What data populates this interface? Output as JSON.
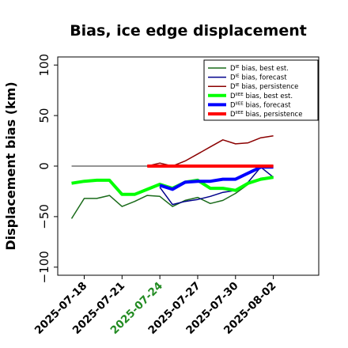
{
  "chart_data": {
    "type": "line",
    "title": "Bias, ice edge displacement",
    "ylabel": "Displacement bias (km)",
    "xlabel": "",
    "ylim": [
      -108,
      108
    ],
    "yticks": [
      -100,
      -50,
      0,
      50,
      100
    ],
    "ytick_labels": [
      "−100",
      "−50",
      "0",
      "50",
      "100"
    ],
    "xlim": [
      -1.1,
      19.6
    ],
    "xticks": [
      {
        "x": 1,
        "label": "2025-07-18",
        "color": "#000000"
      },
      {
        "x": 4,
        "label": "2025-07-21",
        "color": "#000000"
      },
      {
        "x": 7,
        "label": "2025-07-24",
        "color": "#228b22"
      },
      {
        "x": 10,
        "label": "2025-07-27",
        "color": "#000000"
      },
      {
        "x": 13,
        "label": "2025-07-30",
        "color": "#000000"
      },
      {
        "x": 16,
        "label": "2025-08-02",
        "color": "#000000"
      }
    ],
    "legend_position": "top-right",
    "series": [
      {
        "name": "D^IE bias, best est.",
        "sup": "IE",
        "rest": " bias, best est.",
        "color": "#1a6b1a",
        "width": 1.5,
        "x": [
          0,
          1,
          2,
          3,
          4,
          5,
          6,
          7,
          8,
          9,
          10,
          11,
          12,
          13,
          14,
          15,
          16
        ],
        "y": [
          -52,
          -32,
          -32,
          -29,
          -40,
          -35,
          -29,
          -30,
          -40,
          -34,
          -31,
          -37,
          -34,
          -27,
          -18,
          -12,
          -11
        ]
      },
      {
        "name": "D^IE bias, forecast",
        "sup": "IE",
        "rest": " bias, forecast",
        "color": "#00008b",
        "width": 1.5,
        "x": [
          7,
          8,
          9,
          10,
          11,
          12,
          13,
          14,
          15,
          16
        ],
        "y": [
          -21,
          -38,
          -35,
          -33,
          -30,
          -26,
          -24,
          -16,
          -1,
          -11
        ]
      },
      {
        "name": "D^IE bias, persistence",
        "sup": "IE",
        "rest": " bias, persistence",
        "color": "#8b0000",
        "width": 1.5,
        "x": [
          6,
          7,
          8,
          9,
          10,
          11,
          12,
          13,
          14,
          15,
          16
        ],
        "y": [
          0,
          3,
          0,
          5,
          12,
          19,
          26,
          22,
          23,
          28,
          30
        ]
      },
      {
        "name": "D^IIEE bias, best est.",
        "sup": "IIEE",
        "rest": " bias, best est.",
        "color": "#00ff00",
        "width": 4,
        "x": [
          0,
          1,
          2,
          3,
          4,
          5,
          6,
          7,
          8,
          9,
          10,
          11,
          12,
          13,
          14,
          15,
          16
        ],
        "y": [
          -17,
          -15,
          -14,
          -14,
          -28,
          -28,
          -23,
          -18,
          -22,
          -16,
          -14,
          -22,
          -22,
          -24,
          -17,
          -13,
          -11
        ]
      },
      {
        "name": "D^IIEE bias, forecast",
        "sup": "IIEE",
        "rest": " bias, forecast",
        "color": "#0000ff",
        "width": 4,
        "x": [
          7,
          8,
          9,
          10,
          11,
          12,
          13,
          14,
          15,
          16
        ],
        "y": [
          -19,
          -23,
          -16,
          -15,
          -15,
          -13,
          -13,
          -7,
          -1,
          -1
        ]
      },
      {
        "name": "D^IIEE bias, persistence",
        "sup": "IIEE",
        "rest": " bias, persistence",
        "color": "#ff0000",
        "width": 4,
        "x": [
          6,
          7,
          8,
          9,
          10,
          11,
          12,
          13,
          14,
          15,
          16
        ],
        "y": [
          0,
          0,
          0,
          0,
          0,
          0,
          0,
          0,
          0,
          0,
          0
        ]
      }
    ],
    "reference_line": {
      "x": [
        0,
        16
      ],
      "y": 0,
      "color": "#555555"
    }
  }
}
